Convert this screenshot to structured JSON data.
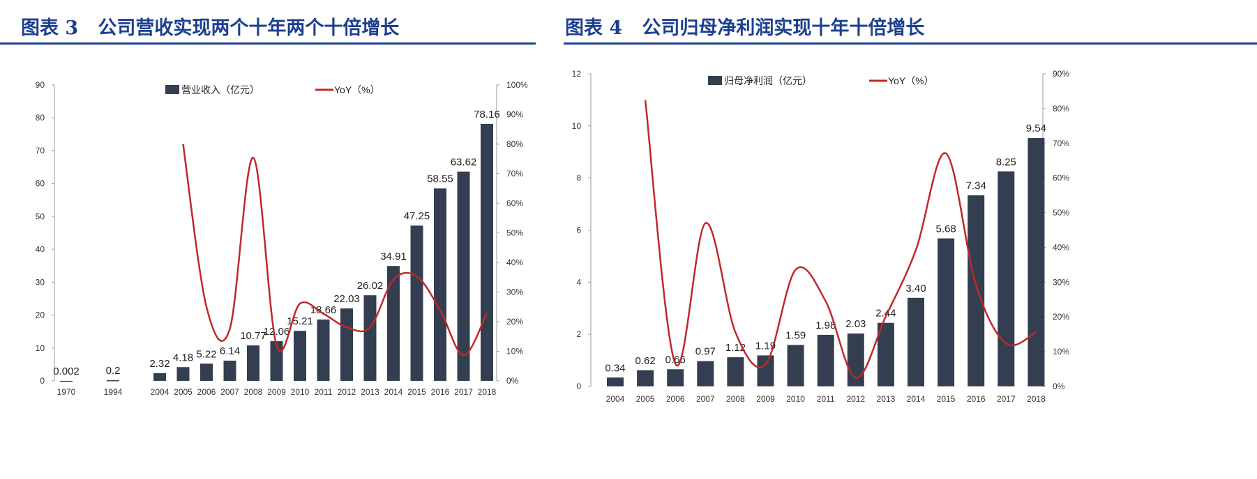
{
  "charts_titles": [
    "图表 3   公司营收实现两个十年两个十倍增长",
    "图表 4   公司归母净利润实现十年十倍增长"
  ],
  "colors": {
    "title": "#1c3f8f",
    "bar": "#333e50",
    "line": "#c0282a"
  },
  "chart_data": [
    {
      "type": "bar+line",
      "title": "图表 3   公司营收实现两个十年两个十倍增长",
      "categories": [
        "1970",
        "",
        "1994",
        "",
        "2004",
        "2005",
        "2006",
        "2007",
        "2008",
        "2009",
        "2010",
        "2011",
        "2012",
        "2013",
        "2014",
        "2015",
        "2016",
        "2017",
        "2018"
      ],
      "series": [
        {
          "name": "营业收入（亿元）",
          "type": "bar",
          "axis": "left",
          "values": [
            0.002,
            null,
            0.2,
            null,
            2.32,
            4.18,
            5.22,
            6.14,
            10.77,
            12.06,
            15.21,
            18.66,
            22.03,
            26.02,
            34.91,
            47.25,
            58.55,
            63.62,
            78.16
          ],
          "labels": [
            "0.002",
            "",
            "0.2",
            "",
            "2.32",
            "4.18",
            "5.22",
            "6.14",
            "10.77",
            "12.06",
            "15.21",
            "18.66",
            "22.03",
            "26.02",
            "34.91",
            "47.25",
            "58.55",
            "63.62",
            "78.16"
          ]
        },
        {
          "name": "YoY（%）",
          "type": "line",
          "axis": "right",
          "values": [
            null,
            null,
            null,
            null,
            null,
            80,
            25,
            17.6,
            75.4,
            12,
            26.1,
            22.7,
            18.1,
            18.1,
            34.2,
            35.3,
            23.9,
            8.7,
            22.9
          ]
        }
      ],
      "ylim_left": [
        0,
        90
      ],
      "yticks_left": [
        "0",
        "10",
        "20",
        "30",
        "40",
        "50",
        "60",
        "70",
        "80",
        "90"
      ],
      "ylim_right": [
        0,
        100
      ],
      "yticks_right": [
        "0%",
        "10%",
        "20%",
        "30%",
        "40%",
        "50%",
        "60%",
        "70%",
        "80%",
        "90%",
        "100%"
      ],
      "legend": "top-center",
      "grid": false
    },
    {
      "type": "bar+line",
      "title": "图表 4   公司归母净利润实现十年十倍增长",
      "categories": [
        "2004",
        "2005",
        "2006",
        "2007",
        "2008",
        "2009",
        "2010",
        "2011",
        "2012",
        "2013",
        "2014",
        "2015",
        "2016",
        "2017",
        "2018"
      ],
      "series": [
        {
          "name": "归母净利润（亿元）",
          "type": "bar",
          "axis": "left",
          "values": [
            0.34,
            0.62,
            0.66,
            0.97,
            1.12,
            1.19,
            1.59,
            1.98,
            2.03,
            2.44,
            3.4,
            5.68,
            7.34,
            8.25,
            9.54
          ],
          "labels": [
            "0.34",
            "0.62",
            "0.66",
            "0.97",
            "1.12",
            "1.19",
            "1.59",
            "1.98",
            "2.03",
            "2.44",
            "3.40",
            "5.68",
            "7.34",
            "8.25",
            "9.54"
          ]
        },
        {
          "name": "YoY（%）",
          "type": "line",
          "axis": "right",
          "values": [
            null,
            82.4,
            6.5,
            47,
            15.5,
            6.3,
            33.6,
            24.5,
            2.5,
            20.2,
            39.3,
            67.1,
            29.2,
            12.4,
            15.6
          ]
        }
      ],
      "ylim_left": [
        0,
        12
      ],
      "yticks_left": [
        "0",
        "2",
        "4",
        "6",
        "8",
        "10",
        "12"
      ],
      "ylim_right": [
        0,
        90
      ],
      "yticks_right": [
        "0%",
        "10%",
        "20%",
        "30%",
        "40%",
        "50%",
        "60%",
        "70%",
        "80%",
        "90%"
      ],
      "legend": "top-center",
      "grid": false
    }
  ]
}
